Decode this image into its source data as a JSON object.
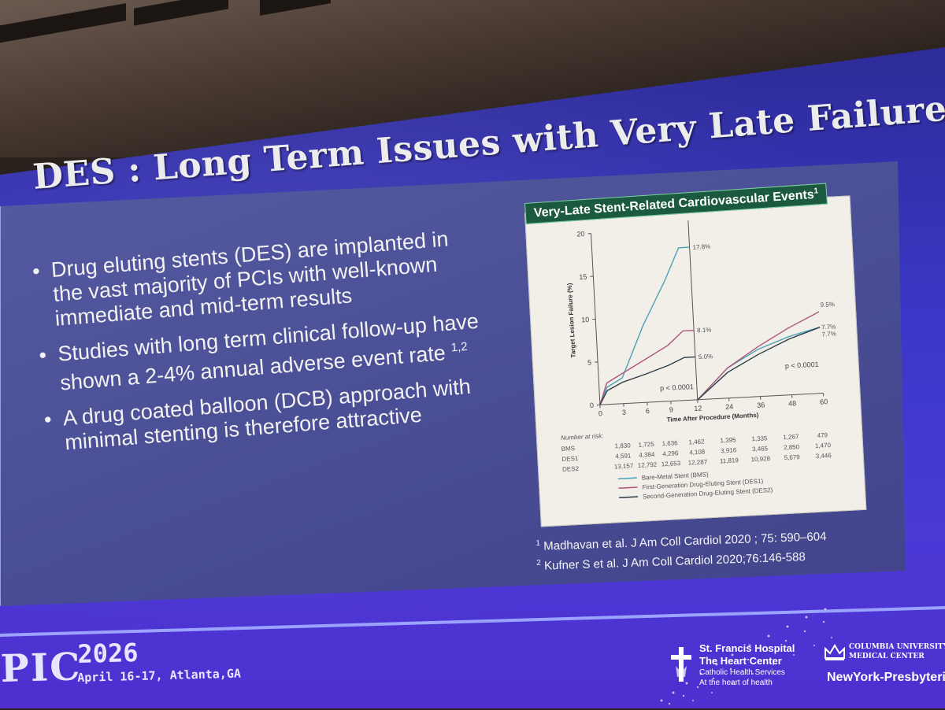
{
  "slide": {
    "title": "DES : Long Term Issues with Very Late Failure",
    "bullets": [
      {
        "text": "Drug eluting stents (DES) are implanted in the vast majority of PCIs with well-known immediate and mid-term results",
        "sup": ""
      },
      {
        "text": "Studies with long term clinical follow-up have shown a 2-4% annual adverse event rate",
        "sup": "1,2"
      },
      {
        "text": "A drug coated balloon (DCB) approach with minimal stenting is therefore attractive",
        "sup": ""
      }
    ],
    "chart_heading": "Very-Late Stent-Related Cardiovascular Events",
    "chart_heading_sup": "1",
    "references": [
      {
        "sup": "1",
        "text": "Madhavan et al. J Am Coll Cardiol 2020 ; 75: 590–604"
      },
      {
        "sup": "2",
        "text": "Kufner S et al. J Am Coll Cardiol 2020;76:146-588"
      }
    ]
  },
  "chart_data": {
    "type": "line",
    "ylabel": "Target Lesion Failure (%)",
    "xlabel": "Time After Procedure (Months)",
    "yticks": [
      "0",
      "5",
      "10",
      "15",
      "20"
    ],
    "ylim": [
      0,
      20
    ],
    "xticks_left": [
      "0",
      "3",
      "6",
      "9",
      "12"
    ],
    "xticks_right": [
      "24",
      "36",
      "48",
      "60"
    ],
    "pvalue_left": "p < 0.0001",
    "pvalue_right": "p < 0.0001",
    "end_labels_left": [
      "17.8%",
      "8.1%",
      "5.0%"
    ],
    "end_labels_right": [
      "9.5%",
      "7.7%",
      "7.7%"
    ],
    "series": [
      {
        "name": "Bare-Metal Stent (BMS)",
        "color": "#4aa3b8",
        "x": [
          0,
          1,
          3,
          6,
          9,
          11,
          12,
          12.1,
          24,
          36,
          48,
          60
        ],
        "y": [
          0,
          2,
          3,
          9,
          14,
          17.8,
          17.8,
          0,
          3.5,
          5.5,
          6.8,
          7.7
        ]
      },
      {
        "name": "First-Generation Drug-Eluting Stent (DES1)",
        "color": "#b0567a",
        "x": [
          0,
          1,
          3,
          6,
          9,
          11,
          12,
          12.1,
          24,
          36,
          48,
          60
        ],
        "y": [
          0,
          2.5,
          3.5,
          5,
          6.5,
          8.1,
          8.1,
          0,
          3.5,
          5.8,
          7.8,
          9.5
        ]
      },
      {
        "name": "Second-Generation Drug-Eluting Stent (DES2)",
        "color": "#2c3a46",
        "x": [
          0,
          1,
          3,
          6,
          9,
          11,
          12,
          12.1,
          24,
          36,
          48,
          60
        ],
        "y": [
          0,
          1.6,
          2.5,
          3.3,
          4.2,
          5.0,
          5.0,
          0,
          3.0,
          4.9,
          6.5,
          7.7
        ]
      }
    ],
    "risk_table": {
      "title": "Number at risk:",
      "rows": [
        {
          "label": "BMS",
          "values": [
            "1,830",
            "1,725",
            "1,636",
            "1,462",
            "1,395",
            "1,335",
            "1,267",
            "479"
          ]
        },
        {
          "label": "DES1",
          "values": [
            "4,591",
            "4,384",
            "4,296",
            "4,108",
            "3,916",
            "3,465",
            "2,850",
            "1,470"
          ]
        },
        {
          "label": "DES2",
          "values": [
            "13,157",
            "12,792",
            "12,653",
            "12,287",
            "11,819",
            "10,928",
            "5,679",
            "3,446"
          ]
        }
      ]
    }
  },
  "footer": {
    "conference": "PIC",
    "year": "2026",
    "dates": "April 16-17, Atlanta,GA",
    "stfrancis_line1": "St. Francis Hospital",
    "stfrancis_line2": "The Heart Center",
    "stfrancis_line3": "Catholic Health Services",
    "stfrancis_line4": "At the heart of health",
    "columbia_line1": "COLUMBIA UNIVERSITY",
    "columbia_line2": "MEDICAL CENTER",
    "nyp": "NewYork-Presbyterian"
  }
}
